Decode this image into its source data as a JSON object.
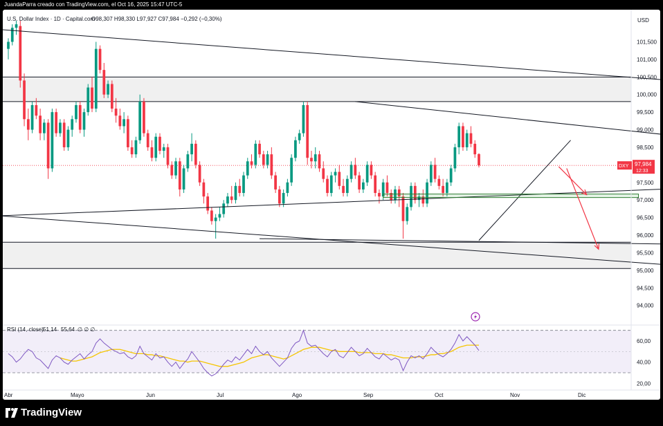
{
  "header": {
    "author_line": "JuandaParra creado con TradingView.com, el Oct 16, 2025 15:47 UTC-5"
  },
  "chart_data": {
    "type": "candlestick",
    "symbol_title": "U.S. Dollar Index · 1D · Capital.com",
    "ohlc_line": "O98,307  H98,330  L97,927  C97,984  −0,292 (−0,30%)",
    "currency": "USD",
    "last_price": {
      "symbol": "DXY",
      "value": "97,984",
      "countdown": "12:33",
      "number": 97.984
    },
    "y_ticks": [
      "101,500",
      "101,000",
      "100,500",
      "100,000",
      "99,500",
      "99,000",
      "98,500",
      "98,000",
      "97,500",
      "97,000",
      "96,500",
      "96,000",
      "95,500",
      "95,000",
      "94,500",
      "94,000"
    ],
    "ylim": [
      93.6,
      102.1
    ],
    "x_labels": [
      "Abr",
      "Mayo",
      "Jun",
      "Jul",
      "Ago",
      "Sep",
      "Oct",
      "Nov",
      "Dic"
    ],
    "candles": [
      [
        101.3,
        101.6,
        101.0,
        101.5
      ],
      [
        101.5,
        102.0,
        101.4,
        101.9
      ],
      [
        101.9,
        102.1,
        101.7,
        102.0
      ],
      [
        101.95,
        102.1,
        100.2,
        100.4
      ],
      [
        100.4,
        100.6,
        99.1,
        99.3
      ],
      [
        99.3,
        99.6,
        98.7,
        99.0
      ],
      [
        99.0,
        99.8,
        98.9,
        99.7
      ],
      [
        99.7,
        99.9,
        99.3,
        99.4
      ],
      [
        99.4,
        99.6,
        98.7,
        98.9
      ],
      [
        98.9,
        99.3,
        98.7,
        99.2
      ],
      [
        99.2,
        99.3,
        97.6,
        97.9
      ],
      [
        97.9,
        99.6,
        97.8,
        99.5
      ],
      [
        99.5,
        99.6,
        98.8,
        98.9
      ],
      [
        98.9,
        99.3,
        98.8,
        99.2
      ],
      [
        99.2,
        99.3,
        98.4,
        98.5
      ],
      [
        98.5,
        99.1,
        98.4,
        99.0
      ],
      [
        99.0,
        99.4,
        98.8,
        99.3
      ],
      [
        99.3,
        99.8,
        99.2,
        99.7
      ],
      [
        99.7,
        99.8,
        98.9,
        99.0
      ],
      [
        99.0,
        99.6,
        98.8,
        99.5
      ],
      [
        99.5,
        100.3,
        99.4,
        100.2
      ],
      [
        100.2,
        100.5,
        99.5,
        99.6
      ],
      [
        99.6,
        101.5,
        99.5,
        101.3
      ],
      [
        101.3,
        101.4,
        100.6,
        100.7
      ],
      [
        100.7,
        100.9,
        99.9,
        100.0
      ],
      [
        100.0,
        100.4,
        99.9,
        100.3
      ],
      [
        100.3,
        100.4,
        99.5,
        99.6
      ],
      [
        99.6,
        99.9,
        99.2,
        99.4
      ],
      [
        99.4,
        99.6,
        99.0,
        99.1
      ],
      [
        99.1,
        99.5,
        98.9,
        99.3
      ],
      [
        99.3,
        99.4,
        98.4,
        98.5
      ],
      [
        98.5,
        98.7,
        98.2,
        98.3
      ],
      [
        98.3,
        98.8,
        98.2,
        98.7
      ],
      [
        98.7,
        100.0,
        98.6,
        99.8
      ],
      [
        99.8,
        99.9,
        98.8,
        98.9
      ],
      [
        98.9,
        99.0,
        98.4,
        98.5
      ],
      [
        98.5,
        98.7,
        98.1,
        98.2
      ],
      [
        98.2,
        98.9,
        98.1,
        98.8
      ],
      [
        98.8,
        98.9,
        98.3,
        98.4
      ],
      [
        98.4,
        98.6,
        98.2,
        98.5
      ],
      [
        98.5,
        98.6,
        97.9,
        98.0
      ],
      [
        98.0,
        98.1,
        97.6,
        97.7
      ],
      [
        97.7,
        98.2,
        97.6,
        98.1
      ],
      [
        98.1,
        98.2,
        97.1,
        97.3
      ],
      [
        97.3,
        98.0,
        97.2,
        97.9
      ],
      [
        97.9,
        98.4,
        97.8,
        98.3
      ],
      [
        98.3,
        98.9,
        98.1,
        98.6
      ],
      [
        98.6,
        98.7,
        97.9,
        98.0
      ],
      [
        98.0,
        98.1,
        97.4,
        97.5
      ],
      [
        97.5,
        97.6,
        96.9,
        97.1
      ],
      [
        97.1,
        97.2,
        96.6,
        96.7
      ],
      [
        96.7,
        96.8,
        96.3,
        96.4
      ],
      [
        96.4,
        96.6,
        95.9,
        96.5
      ],
      [
        96.5,
        96.8,
        96.4,
        96.6
      ],
      [
        96.6,
        97.0,
        96.5,
        96.9
      ],
      [
        96.9,
        97.2,
        96.8,
        97.1
      ],
      [
        97.1,
        97.4,
        96.9,
        97.0
      ],
      [
        97.0,
        97.5,
        96.9,
        97.4
      ],
      [
        97.4,
        97.6,
        97.1,
        97.2
      ],
      [
        97.2,
        97.8,
        97.1,
        97.7
      ],
      [
        97.7,
        98.2,
        97.6,
        98.1
      ],
      [
        98.1,
        98.3,
        97.9,
        98.0
      ],
      [
        98.0,
        98.7,
        97.9,
        98.6
      ],
      [
        98.6,
        98.7,
        98.2,
        98.3
      ],
      [
        98.3,
        98.4,
        97.9,
        98.0
      ],
      [
        98.0,
        98.4,
        97.9,
        98.3
      ],
      [
        98.3,
        98.5,
        97.6,
        97.7
      ],
      [
        97.7,
        97.8,
        97.2,
        97.3
      ],
      [
        97.3,
        97.4,
        96.8,
        96.9
      ],
      [
        96.9,
        97.3,
        96.8,
        97.2
      ],
      [
        97.2,
        97.6,
        97.1,
        97.5
      ],
      [
        97.5,
        98.3,
        97.4,
        98.2
      ],
      [
        98.2,
        98.8,
        98.1,
        98.7
      ],
      [
        98.7,
        99.0,
        98.6,
        98.9
      ],
      [
        98.9,
        99.8,
        98.8,
        99.7
      ],
      [
        99.7,
        99.8,
        98.0,
        98.2
      ],
      [
        98.2,
        98.4,
        97.9,
        98.1
      ],
      [
        98.1,
        98.5,
        97.9,
        98.3
      ],
      [
        98.3,
        98.4,
        97.8,
        97.9
      ],
      [
        97.9,
        98.1,
        97.5,
        97.6
      ],
      [
        97.6,
        97.7,
        97.1,
        97.2
      ],
      [
        97.2,
        97.8,
        97.1,
        97.7
      ],
      [
        97.7,
        97.9,
        97.5,
        97.8
      ],
      [
        97.8,
        98.0,
        97.3,
        97.4
      ],
      [
        97.4,
        97.6,
        97.1,
        97.2
      ],
      [
        97.2,
        97.7,
        97.1,
        97.6
      ],
      [
        97.6,
        98.1,
        97.5,
        98.0
      ],
      [
        98.0,
        98.2,
        97.6,
        97.7
      ],
      [
        97.7,
        97.8,
        97.2,
        97.3
      ],
      [
        97.3,
        97.6,
        97.2,
        97.5
      ],
      [
        97.5,
        98.1,
        97.4,
        98.0
      ],
      [
        98.0,
        98.1,
        97.6,
        97.7
      ],
      [
        97.7,
        97.8,
        97.1,
        97.2
      ],
      [
        97.2,
        97.3,
        96.9,
        97.1
      ],
      [
        97.1,
        97.6,
        97.0,
        97.5
      ],
      [
        97.5,
        97.7,
        97.1,
        97.2
      ],
      [
        97.2,
        97.3,
        96.9,
        97.0
      ],
      [
        97.0,
        97.4,
        96.9,
        97.3
      ],
      [
        97.3,
        97.4,
        96.8,
        97.1
      ],
      [
        97.1,
        97.2,
        95.9,
        96.4
      ],
      [
        96.4,
        96.9,
        96.3,
        96.8
      ],
      [
        96.8,
        97.5,
        96.7,
        97.4
      ],
      [
        97.4,
        97.5,
        96.9,
        97.0
      ],
      [
        97.0,
        97.2,
        96.8,
        97.1
      ],
      [
        97.1,
        97.3,
        96.8,
        96.9
      ],
      [
        96.9,
        97.6,
        96.8,
        97.5
      ],
      [
        97.5,
        98.1,
        97.4,
        98.0
      ],
      [
        98.0,
        98.2,
        97.5,
        97.6
      ],
      [
        97.6,
        97.7,
        97.3,
        97.4
      ],
      [
        97.4,
        97.6,
        97.1,
        97.2
      ],
      [
        97.2,
        97.6,
        97.1,
        97.5
      ],
      [
        97.5,
        98.0,
        97.4,
        97.9
      ],
      [
        97.9,
        98.6,
        97.8,
        98.5
      ],
      [
        98.5,
        99.2,
        98.3,
        99.1
      ],
      [
        99.1,
        99.2,
        98.4,
        98.5
      ],
      [
        98.5,
        99.0,
        98.4,
        98.9
      ],
      [
        98.9,
        99.1,
        98.5,
        98.6
      ],
      [
        98.6,
        98.7,
        98.2,
        98.3
      ],
      [
        98.307,
        98.33,
        97.927,
        97.984
      ]
    ],
    "trendlines": [
      {
        "x0": -2,
        "y0": 101.85,
        "x1": 184,
        "y1": 100.25
      },
      {
        "x0": 87,
        "y0": 99.8,
        "x1": 182,
        "y1": 98.65
      },
      {
        "x0": -2,
        "y0": 96.55,
        "x1": 184,
        "y1": 97.4
      },
      {
        "x0": -2,
        "y0": 96.55,
        "x1": 184,
        "y1": 95.0
      },
      {
        "x0": 63,
        "y0": 95.9,
        "x1": 164,
        "y1": 95.75
      },
      {
        "x0": 118,
        "y0": 95.85,
        "x1": 141,
        "y1": 98.7
      }
    ],
    "horizontal_levels": [
      100.5,
      99.8,
      95.8,
      95.05
    ],
    "zones": [
      [
        99.8,
        100.5
      ],
      [
        95.05,
        95.8
      ]
    ],
    "green_box": {
      "x0": 94,
      "x1": 158,
      "y0": 97.07,
      "y1": 97.17
    },
    "projection_arrows": [
      {
        "path": [
          [
            138,
            97.95
          ],
          [
            145,
            97.15
          ]
        ]
      },
      {
        "path": [
          [
            140,
            97.9
          ],
          [
            148,
            95.6
          ]
        ]
      }
    ],
    "rsi": {
      "label": "RSI (14, close)",
      "rsi_value": "51,14",
      "ma_value": "55,64",
      "na_values": "∅  ∅  ∅",
      "y_ticks": [
        "60,00",
        "40,00",
        "20,00"
      ],
      "ylim": [
        15,
        75
      ],
      "upper_band": 70,
      "lower_band": 30,
      "rsi_series": [
        48,
        45,
        40,
        43,
        48,
        52,
        50,
        44,
        42,
        38,
        34,
        42,
        46,
        44,
        40,
        38,
        42,
        45,
        48,
        43,
        47,
        50,
        58,
        62,
        58,
        55,
        52,
        50,
        48,
        49,
        45,
        43,
        46,
        55,
        48,
        45,
        42,
        48,
        44,
        45,
        40,
        36,
        40,
        34,
        39,
        43,
        50,
        45,
        40,
        34,
        30,
        27,
        29,
        33,
        38,
        42,
        40,
        45,
        42,
        47,
        52,
        48,
        55,
        50,
        47,
        50,
        44,
        40,
        36,
        40,
        44,
        53,
        58,
        60,
        70,
        58,
        55,
        56,
        52,
        48,
        45,
        50,
        52,
        46,
        44,
        49,
        54,
        50,
        46,
        48,
        53,
        49,
        45,
        43,
        48,
        45,
        42,
        44,
        42,
        32,
        40,
        46,
        44,
        46,
        43,
        48,
        54,
        50,
        47,
        45,
        48,
        52,
        58,
        66,
        60,
        64,
        60,
        56,
        51
      ],
      "ma_series": [
        null,
        null,
        null,
        null,
        null,
        null,
        null,
        null,
        null,
        null,
        null,
        null,
        null,
        44,
        43,
        42,
        41,
        41,
        42,
        43,
        44,
        45,
        47,
        49,
        50,
        51,
        52,
        52,
        52,
        51,
        50,
        49,
        48,
        48,
        48,
        47,
        47,
        46,
        46,
        45,
        44,
        43,
        42,
        41,
        41,
        40,
        41,
        41,
        41,
        40,
        39,
        38,
        37,
        36,
        36,
        36,
        37,
        38,
        39,
        40,
        42,
        44,
        45,
        46,
        47,
        47,
        46,
        45,
        44,
        43,
        44,
        46,
        48,
        50,
        52,
        53,
        54,
        54,
        54,
        53,
        52,
        51,
        51,
        50,
        50,
        50,
        50,
        50,
        49,
        49,
        49,
        49,
        48,
        48,
        48,
        47,
        47,
        46,
        45,
        44,
        44,
        44,
        45,
        45,
        45,
        46,
        47,
        47,
        48,
        48,
        49,
        50,
        52,
        54,
        55,
        56,
        56,
        56,
        56
      ]
    }
  },
  "footer": {
    "brand": "TradingView"
  }
}
